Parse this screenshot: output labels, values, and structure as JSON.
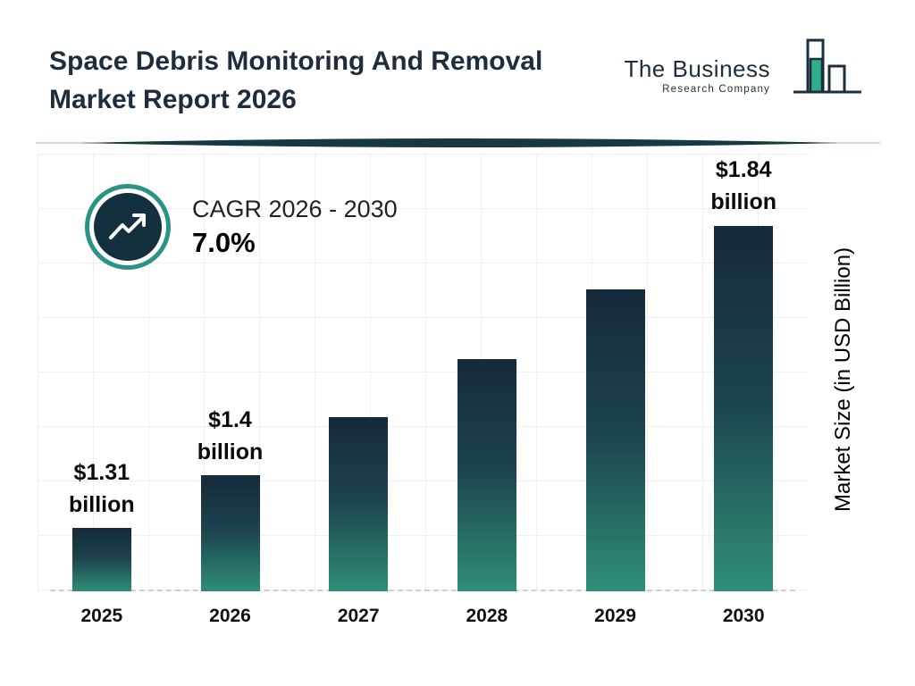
{
  "page": {
    "title_line1": "Space Debris Monitoring And Removal",
    "title_line2": "Market Report 2026"
  },
  "logo": {
    "line1": "The Business",
    "line2": "Research Company"
  },
  "cagr": {
    "label": "CAGR 2026 - 2030",
    "value": "7.0%"
  },
  "chart_data": {
    "type": "bar",
    "title": "Space Debris Monitoring And Removal Market Report 2026",
    "categories": [
      "2025",
      "2026",
      "2027",
      "2028",
      "2029",
      "2030"
    ],
    "values": [
      1.31,
      1.4,
      1.5,
      1.6,
      1.72,
      1.84
    ],
    "labels": [
      {
        "amount": "$1.31",
        "unit": "billion"
      },
      {
        "amount": "$1.4",
        "unit": "billion"
      },
      null,
      null,
      null,
      {
        "amount": "$1.84",
        "unit": "billion"
      }
    ],
    "xlabel": "",
    "ylabel": "Market Size (in USD Billion)",
    "ylim": [
      1.2,
      1.95
    ],
    "grid": true,
    "legend": "none",
    "cagr_label": "CAGR 2026 - 2030",
    "cagr_value": "7.0%",
    "colors": {
      "bar_gradient_top": "#15293a",
      "bar_gradient_bottom": "#2f8f74",
      "accent_teal": "#2a9386",
      "title_navy": "#1c2e3e",
      "logo_green": "#2fae8b"
    }
  }
}
